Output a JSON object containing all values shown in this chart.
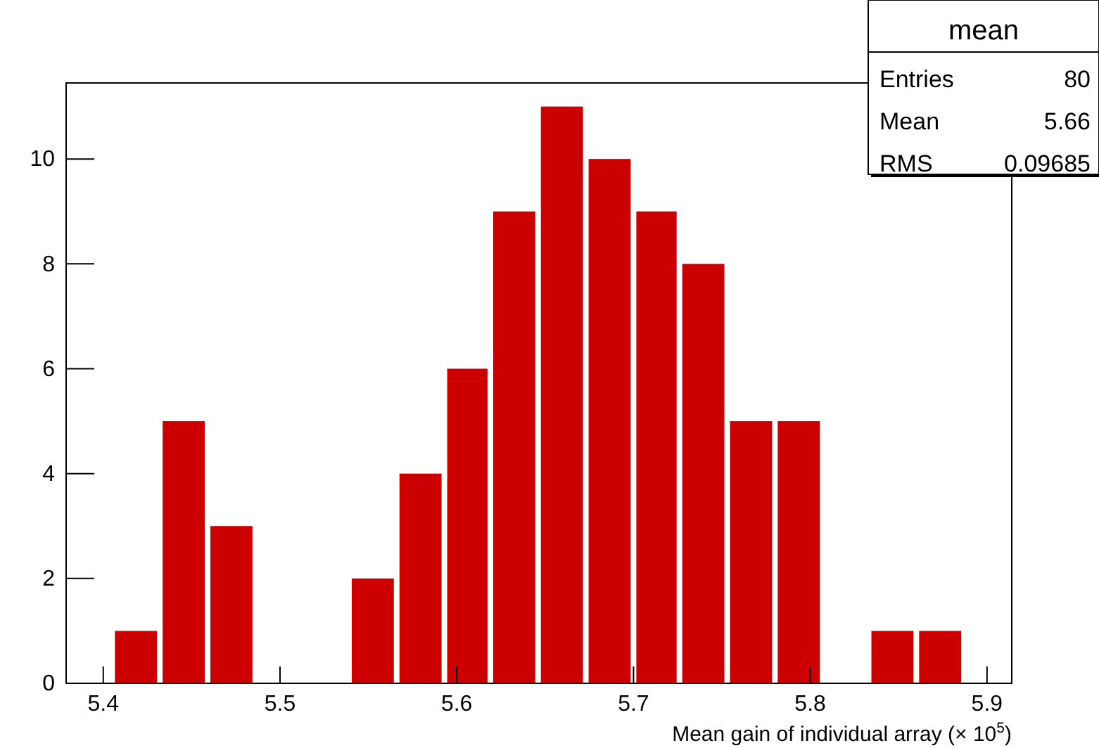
{
  "chart_data": {
    "type": "histogram",
    "xlabel": "Mean gain of individual array (× 10$^{5}$)",
    "bins": [
      5.405,
      5.432,
      5.459,
      5.486,
      5.539,
      5.566,
      5.593,
      5.619,
      5.646,
      5.673,
      5.7,
      5.726,
      5.753,
      5.78,
      5.807,
      5.833,
      5.86,
      5.887
    ],
    "values": [
      1,
      5,
      3,
      0,
      2,
      4,
      6,
      9,
      11,
      10,
      9,
      8,
      5,
      5,
      0,
      1,
      1
    ],
    "color": "#cc0000",
    "xlim": [
      5.379,
      5.914
    ],
    "xticks": [
      5.4,
      5.5,
      5.6,
      5.7,
      5.8,
      5.9
    ],
    "ylim": [
      0,
      11.45
    ],
    "yticks": [
      0,
      2,
      4,
      6,
      8,
      10
    ],
    "grid": false,
    "annotations": [
      "mean",
      "Entries",
      "80",
      "Mean",
      "5.66",
      "RMS",
      "0.09685"
    ]
  }
}
